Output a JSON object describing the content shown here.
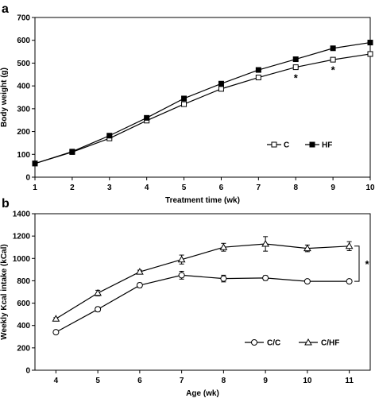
{
  "chart_data": [
    {
      "panel": "a",
      "type": "line",
      "title": "",
      "xlabel": "Treatment time (wk)",
      "ylabel": "Body weight (g)",
      "xlim": [
        1,
        10
      ],
      "ylim": [
        0,
        700
      ],
      "xticks": [
        "1",
        "2",
        "3",
        "4",
        "5",
        "6",
        "7",
        "8",
        "9",
        "10"
      ],
      "yticks": [
        "0",
        "100",
        "200",
        "300",
        "400",
        "500",
        "600",
        "700"
      ],
      "grid": false,
      "legend": "bottom-right",
      "x": [
        1,
        2,
        3,
        4,
        5,
        6,
        7,
        8,
        9,
        10
      ],
      "series": [
        {
          "name": "C",
          "marker": "open-square",
          "values": [
            60,
            110,
            170,
            248,
            320,
            387,
            437,
            482,
            515,
            540
          ],
          "errors": [
            3,
            4,
            5,
            5,
            6,
            7,
            7,
            8,
            9,
            10
          ]
        },
        {
          "name": "HF",
          "marker": "filled-square",
          "values": [
            60,
            112,
            182,
            260,
            345,
            410,
            470,
            517,
            565,
            590
          ],
          "errors": [
            3,
            4,
            5,
            6,
            6,
            7,
            8,
            8,
            9,
            10
          ]
        }
      ],
      "annotations": [
        {
          "text": "*",
          "x": 8,
          "y": 448
        },
        {
          "text": "*",
          "x": 9,
          "y": 483
        }
      ]
    },
    {
      "panel": "b",
      "type": "line",
      "title": "",
      "xlabel": "Age (wk)",
      "ylabel": "Weekly Kcal intake (kCal)",
      "xlim": [
        3.5,
        11.5
      ],
      "ylim": [
        0,
        1400
      ],
      "xticks": [
        "4",
        "5",
        "6",
        "7",
        "8",
        "9",
        "10",
        "11"
      ],
      "yticks": [
        "0",
        "200",
        "400",
        "600",
        "800",
        "1000",
        "1200",
        "1400"
      ],
      "grid": false,
      "legend": "bottom-right",
      "x": [
        4,
        5,
        6,
        7,
        8,
        9,
        10,
        11
      ],
      "series": [
        {
          "name": "C/C",
          "marker": "open-circle",
          "values": [
            340,
            545,
            760,
            850,
            820,
            825,
            795,
            795
          ],
          "errors": [
            15,
            20,
            20,
            35,
            30,
            20,
            10,
            15
          ]
        },
        {
          "name": "C/HF",
          "marker": "open-triangle",
          "values": [
            460,
            690,
            880,
            990,
            1100,
            1130,
            1090,
            1110
          ],
          "errors": [
            10,
            25,
            15,
            40,
            35,
            65,
            30,
            40
          ]
        }
      ],
      "significance": {
        "text": "*",
        "between": [
          795,
          1110
        ],
        "at_x": 11
      }
    }
  ]
}
